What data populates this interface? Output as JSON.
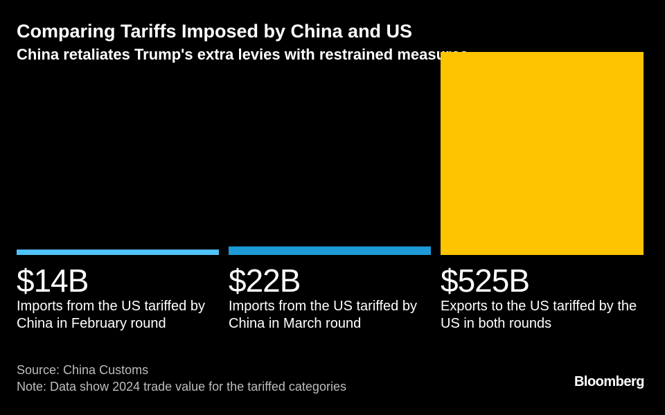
{
  "header": {
    "title": "Comparing Tariffs Imposed by China and US",
    "subtitle": "China retaliates Trump's extra levies with restrained measures"
  },
  "chart_data": {
    "type": "bar",
    "title": "Comparing Tariffs Imposed by China and US",
    "subtitle": "China retaliates Trump's extra levies with restrained measures",
    "unit": "billion USD",
    "categories": [
      "Imports from the US tariffed by China in February round",
      "Imports from the US tariffed by China in March round",
      "Exports to the US tariffed by the US in both rounds"
    ],
    "values": [
      14,
      22,
      525
    ],
    "value_labels": [
      "$14B",
      "$22B",
      "$525B"
    ],
    "colors": [
      "#4fc3f7",
      "#1e9ad6",
      "#ffc400"
    ]
  },
  "footer": {
    "source": "Source: China Customs",
    "note": "Note: Data show 2024 trade value for the tariffed categories",
    "brand": "Bloomberg"
  }
}
